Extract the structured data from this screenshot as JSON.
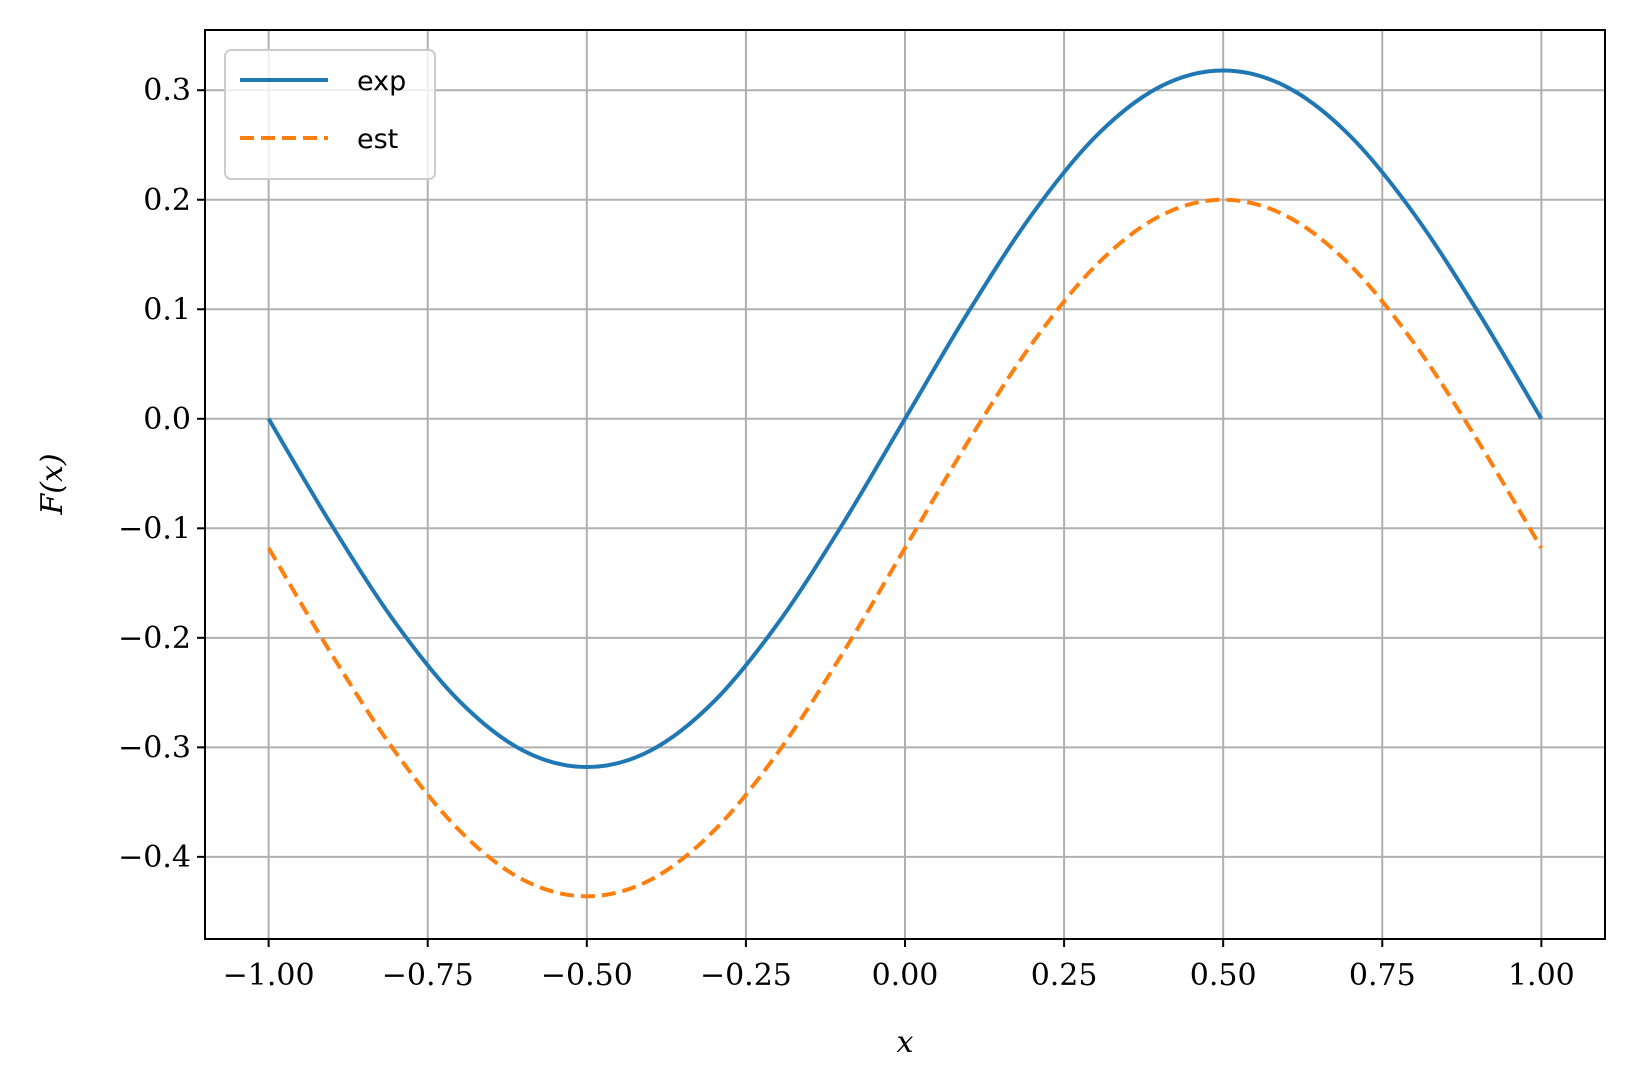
{
  "chart_data": {
    "type": "line",
    "xlabel": "x",
    "ylabel": "F(x)",
    "xlim": [
      -1.1,
      1.1
    ],
    "ylim": [
      -0.475,
      0.355
    ],
    "grid": true,
    "legend_position": "top-left",
    "xticks": [
      -1.0,
      -0.75,
      -0.5,
      -0.25,
      0.0,
      0.25,
      0.5,
      0.75,
      1.0
    ],
    "xtick_labels": [
      "−1.00",
      "−0.75",
      "−0.50",
      "−0.25",
      "0.00",
      "0.25",
      "0.50",
      "0.75",
      "1.00"
    ],
    "yticks": [
      -0.4,
      -0.3,
      -0.2,
      -0.1,
      0.0,
      0.1,
      0.2,
      0.3
    ],
    "ytick_labels": [
      "−0.4",
      "−0.3",
      "−0.2",
      "−0.1",
      "0.0",
      "0.1",
      "0.2",
      "0.3"
    ],
    "x": [
      -1.0,
      -0.9,
      -0.8,
      -0.7,
      -0.6,
      -0.5,
      -0.4,
      -0.3,
      -0.2,
      -0.1,
      0.0,
      0.1,
      0.2,
      0.3,
      0.4,
      0.5,
      0.6,
      0.7,
      0.8,
      0.9,
      1.0
    ],
    "series": [
      {
        "name": "exp",
        "color": "#1f77b4",
        "style": "solid",
        "values": [
          0.0,
          -0.098,
          -0.187,
          -0.258,
          -0.303,
          -0.318,
          -0.303,
          -0.258,
          -0.187,
          -0.098,
          0.0,
          0.098,
          0.187,
          0.258,
          0.303,
          0.318,
          0.303,
          0.258,
          0.187,
          0.098,
          0.0
        ]
      },
      {
        "name": "est",
        "color": "#ff7f0e",
        "style": "dashed",
        "values": [
          -0.118,
          -0.216,
          -0.305,
          -0.376,
          -0.421,
          -0.436,
          -0.421,
          -0.376,
          -0.305,
          -0.216,
          -0.118,
          -0.02,
          0.069,
          0.14,
          0.185,
          0.2,
          0.185,
          0.14,
          0.069,
          -0.02,
          -0.118
        ]
      }
    ]
  }
}
